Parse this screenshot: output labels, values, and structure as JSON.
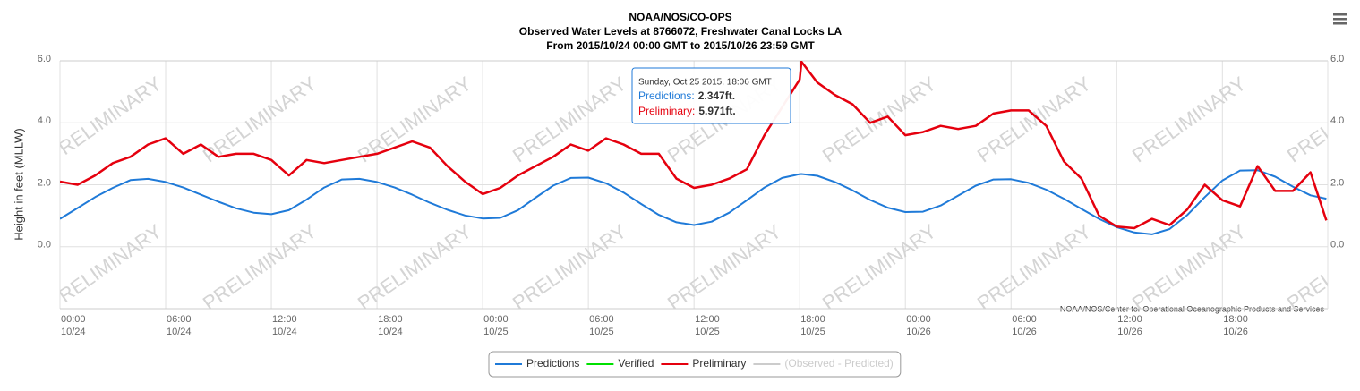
{
  "chart_data": {
    "type": "line",
    "title": [
      "NOAA/NOS/CO-OPS",
      "Observed Water Levels at 8766072, Freshwater Canal Locks LA",
      "From 2015/10/24 00:00 GMT to 2015/10/26 23:59 GMT"
    ],
    "y_label": "Height in feet (MLLW)",
    "credits": "NOAA/NOS/Center for Operational Oceanographic Products and Services",
    "watermark": "PRELIMINARY",
    "grid": true,
    "ylim": [
      -2,
      6
    ],
    "yticks": [
      {
        "value": 0,
        "label": "0.0"
      },
      {
        "value": 2,
        "label": "2.0"
      },
      {
        "value": 4,
        "label": "4.0"
      },
      {
        "value": 6,
        "label": "6.0"
      }
    ],
    "y2lim": [
      -2,
      6
    ],
    "y2ticks": [
      {
        "value": 0,
        "label": "0.0"
      },
      {
        "value": 2,
        "label": "2.0"
      },
      {
        "value": 4,
        "label": "4.0"
      },
      {
        "value": 6,
        "label": "6.0"
      }
    ],
    "xlim": [
      "10/24 00:00",
      "10/26 23:59"
    ],
    "xticks": [
      {
        "value": "10/24 00:00",
        "label": [
          "00:00",
          "10/24"
        ]
      },
      {
        "value": "10/24 06:00",
        "label": [
          "06:00",
          "10/24"
        ]
      },
      {
        "value": "10/24 12:00",
        "label": [
          "12:00",
          "10/24"
        ]
      },
      {
        "value": "10/24 18:00",
        "label": [
          "18:00",
          "10/24"
        ]
      },
      {
        "value": "10/25 00:00",
        "label": [
          "00:00",
          "10/25"
        ]
      },
      {
        "value": "10/25 06:00",
        "label": [
          "06:00",
          "10/25"
        ]
      },
      {
        "value": "10/25 12:00",
        "label": [
          "12:00",
          "10/25"
        ]
      },
      {
        "value": "10/25 18:00",
        "label": [
          "18:00",
          "10/25"
        ]
      },
      {
        "value": "10/26 00:00",
        "label": [
          "00:00",
          "10/26"
        ]
      },
      {
        "value": "10/26 06:00",
        "label": [
          "06:00",
          "10/26"
        ]
      },
      {
        "value": "10/26 12:00",
        "label": [
          "12:00",
          "10/26"
        ]
      },
      {
        "value": "10/26 18:00",
        "label": [
          "18:00",
          "10/26"
        ]
      }
    ],
    "x": [
      "10/24 00:00",
      "10/24 01:00",
      "10/24 02:00",
      "10/24 03:00",
      "10/24 04:00",
      "10/24 05:00",
      "10/24 06:00",
      "10/24 07:00",
      "10/24 08:00",
      "10/24 09:00",
      "10/24 10:00",
      "10/24 11:00",
      "10/24 12:00",
      "10/24 13:00",
      "10/24 14:00",
      "10/24 15:00",
      "10/24 16:00",
      "10/24 17:00",
      "10/24 18:00",
      "10/24 19:00",
      "10/24 20:00",
      "10/24 21:00",
      "10/24 22:00",
      "10/24 23:00",
      "10/25 00:00",
      "10/25 01:00",
      "10/25 02:00",
      "10/25 03:00",
      "10/25 04:00",
      "10/25 05:00",
      "10/25 06:00",
      "10/25 07:00",
      "10/25 08:00",
      "10/25 09:00",
      "10/25 10:00",
      "10/25 11:00",
      "10/25 12:00",
      "10/25 13:00",
      "10/25 14:00",
      "10/25 15:00",
      "10/25 16:00",
      "10/25 17:00",
      "10/25 18:00",
      "10/25 18:06",
      "10/25 19:00",
      "10/25 20:00",
      "10/25 21:00",
      "10/25 22:00",
      "10/25 23:00",
      "10/26 00:00",
      "10/26 01:00",
      "10/26 02:00",
      "10/26 03:00",
      "10/26 04:00",
      "10/26 05:00",
      "10/26 06:00",
      "10/26 07:00",
      "10/26 08:00",
      "10/26 09:00",
      "10/26 10:00",
      "10/26 11:00",
      "10/26 12:00",
      "10/26 13:00",
      "10/26 14:00",
      "10/26 15:00",
      "10/26 16:00",
      "10/26 17:00",
      "10/26 18:00",
      "10/26 19:00",
      "10/26 20:00",
      "10/26 21:00",
      "10/26 22:00",
      "10/26 23:00",
      "10/26 23:54"
    ],
    "series": [
      {
        "name": "Predictions",
        "color": "#1f7ad8",
        "values": [
          0.9,
          1.25,
          1.6,
          1.9,
          2.15,
          2.19,
          2.09,
          1.91,
          1.68,
          1.45,
          1.24,
          1.1,
          1.05,
          1.18,
          1.52,
          1.91,
          2.17,
          2.19,
          2.09,
          1.91,
          1.68,
          1.42,
          1.19,
          1.01,
          0.91,
          0.93,
          1.18,
          1.58,
          1.97,
          2.22,
          2.23,
          2.05,
          1.75,
          1.38,
          1.03,
          0.79,
          0.7,
          0.81,
          1.1,
          1.5,
          1.91,
          2.22,
          2.345,
          2.347,
          2.29,
          2.09,
          1.82,
          1.51,
          1.26,
          1.12,
          1.13,
          1.33,
          1.65,
          1.97,
          2.17,
          2.18,
          2.06,
          1.84,
          1.55,
          1.22,
          0.9,
          0.63,
          0.46,
          0.4,
          0.57,
          1.02,
          1.6,
          2.14,
          2.46,
          2.47,
          2.26,
          1.94,
          1.66,
          1.55
        ]
      },
      {
        "name": "Verified",
        "color": "#00e000",
        "values": [
          null,
          null,
          null,
          null,
          null,
          null,
          null,
          null,
          null,
          null,
          null,
          null,
          null,
          null,
          null,
          null,
          null,
          null,
          null,
          null,
          null,
          null,
          null,
          null,
          null,
          null,
          null,
          null,
          null,
          null,
          null,
          null,
          null,
          null,
          null,
          null,
          null,
          null,
          null,
          null,
          null,
          null,
          null,
          null,
          null,
          null,
          null,
          null,
          null,
          null,
          null,
          null,
          null,
          null,
          null,
          null,
          null,
          null,
          null,
          null,
          null,
          null,
          null,
          null,
          null,
          null,
          null,
          null,
          null,
          null,
          null,
          null,
          null,
          null
        ]
      },
      {
        "name": "Preliminary",
        "color": "#e5000e",
        "values": [
          2.1,
          2.0,
          2.3,
          2.7,
          2.9,
          3.3,
          3.5,
          3.0,
          3.3,
          2.9,
          3.0,
          3.0,
          2.8,
          2.3,
          2.8,
          2.7,
          2.8,
          2.9,
          3.0,
          3.2,
          3.4,
          3.2,
          2.6,
          2.1,
          1.7,
          1.9,
          2.3,
          2.6,
          2.9,
          3.3,
          3.1,
          3.5,
          3.3,
          3.0,
          3.0,
          2.2,
          1.9,
          2.0,
          2.2,
          2.5,
          3.6,
          4.5,
          5.4,
          5.971,
          5.3,
          4.9,
          4.6,
          4.0,
          4.2,
          3.6,
          3.7,
          3.9,
          3.8,
          3.9,
          4.3,
          4.4,
          4.4,
          3.9,
          2.75,
          2.2,
          1.0,
          0.65,
          0.6,
          0.9,
          0.7,
          1.2,
          2.0,
          1.5,
          1.3,
          2.6,
          1.8,
          1.8,
          2.4,
          0.85
        ]
      },
      {
        "name": "(Observed - Predicted)",
        "color": "#cccccc",
        "values": [
          null,
          null,
          null,
          null,
          null,
          null,
          null,
          null,
          null,
          null,
          null,
          null,
          null,
          null,
          null,
          null,
          null,
          null,
          null,
          null,
          null,
          null,
          null,
          null,
          null,
          null,
          null,
          null,
          null,
          null,
          null,
          null,
          null,
          null,
          null,
          null,
          null,
          null,
          null,
          null,
          null,
          null,
          null,
          null,
          null,
          null,
          null,
          null,
          null,
          null,
          null,
          null,
          null,
          null,
          null,
          null,
          null,
          null,
          null,
          null,
          null,
          null,
          null,
          null,
          null,
          null,
          null,
          null,
          null,
          null,
          null,
          null,
          null,
          null
        ],
        "visible": false
      }
    ],
    "tooltip": {
      "title": "Sunday, Oct 25 2015, 18:06 GMT",
      "rows": [
        {
          "label": "Predictions:",
          "value": "2.347ft.",
          "color": "#1f7ad8"
        },
        {
          "label": "Preliminary:",
          "value": "5.971ft.",
          "color": "#e5000e"
        }
      ]
    }
  }
}
